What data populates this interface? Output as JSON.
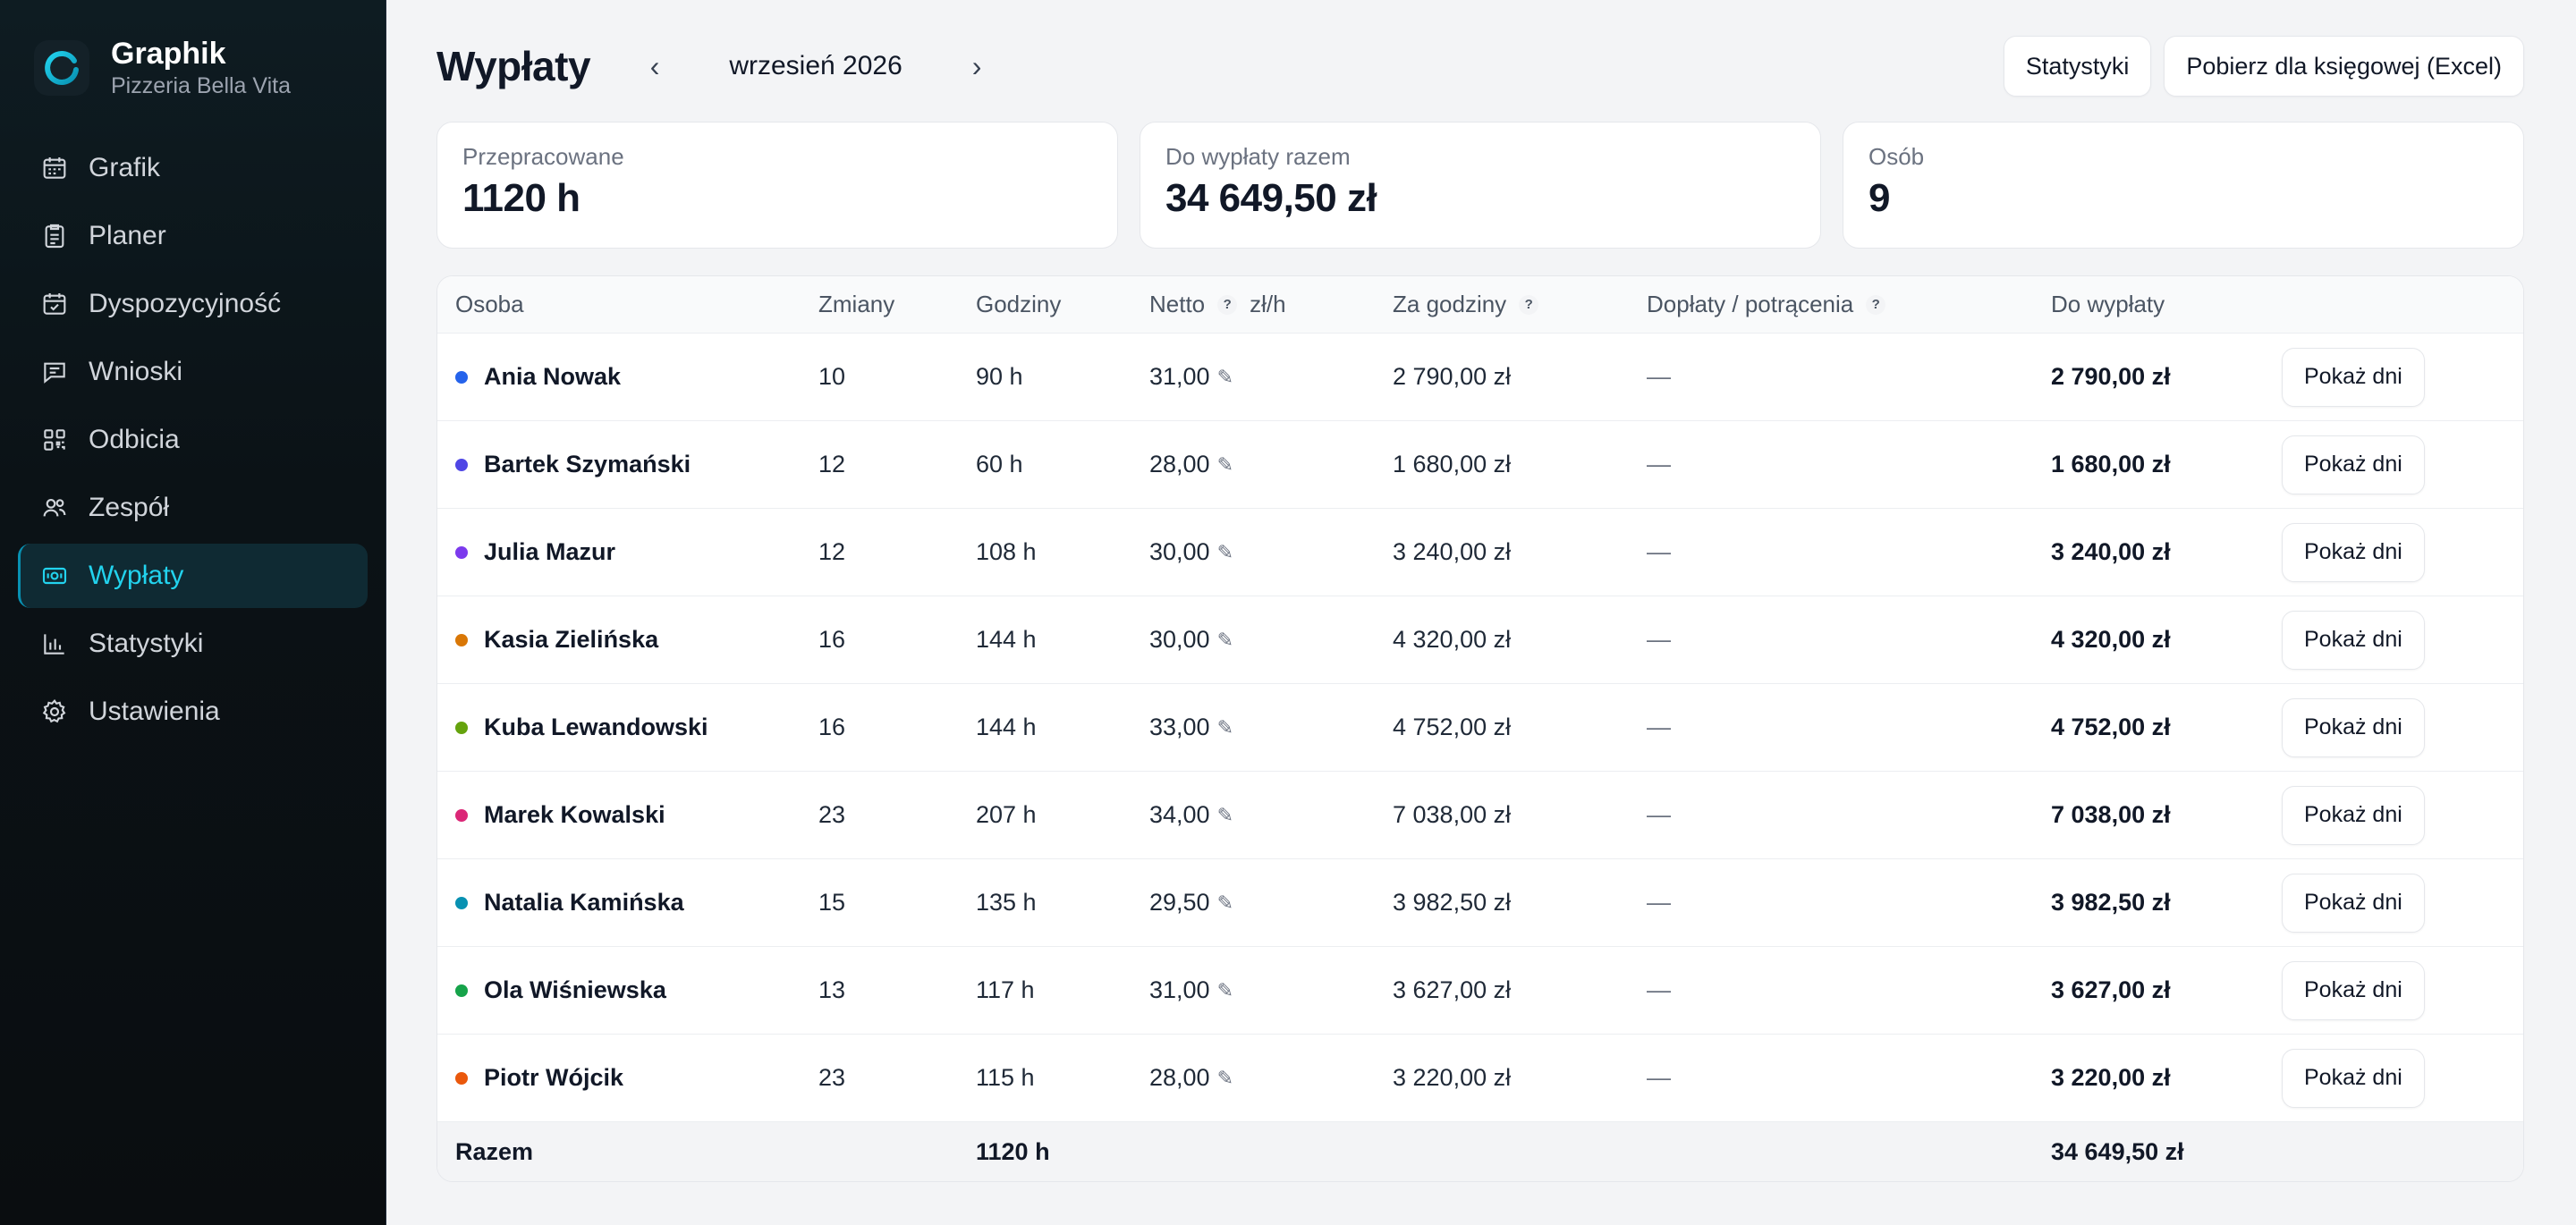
{
  "brand": {
    "name": "Graphik",
    "subtitle": "Pizzeria Bella Vita",
    "accent": "#22d3ee"
  },
  "nav": [
    {
      "label": "Grafik",
      "icon": "calendar-icon",
      "active": false
    },
    {
      "label": "Planer",
      "icon": "clipboard-icon",
      "active": false
    },
    {
      "label": "Dyspozycyjność",
      "icon": "calendar-check-icon",
      "active": false
    },
    {
      "label": "Wnioski",
      "icon": "message-icon",
      "active": false
    },
    {
      "label": "Odbicia",
      "icon": "qr-icon",
      "active": false
    },
    {
      "label": "Zespół",
      "icon": "users-icon",
      "active": false
    },
    {
      "label": "Wypłaty",
      "icon": "banknote-icon",
      "active": true
    },
    {
      "label": "Statystyki",
      "icon": "bar-chart-icon",
      "active": false
    },
    {
      "label": "Ustawienia",
      "icon": "gear-icon",
      "active": false
    }
  ],
  "header": {
    "title": "Wypłaty",
    "month": "wrzesień 2026",
    "prev": "‹",
    "next": "›",
    "stats_button": "Statystyki",
    "export_button": "Pobierz dla księgowej (Excel)"
  },
  "stats": [
    {
      "label": "Przepracowane",
      "value": "1120 h"
    },
    {
      "label": "Do wypłaty razem",
      "value": "34 649,50 zł"
    },
    {
      "label": "Osób",
      "value": "9"
    }
  ],
  "table": {
    "columns": {
      "person": "Osoba",
      "shifts": "Zmiany",
      "hours": "Godziny",
      "net": "Netto",
      "net_unit": "zł/h",
      "for_hours": "Za godziny",
      "adjustments": "Dopłaty / potrącenia",
      "payout": "Do wypłaty"
    },
    "help_mark": "?",
    "edit_mark": "✎",
    "rows": [
      {
        "name": "Ania Nowak",
        "color": "#2563eb",
        "shifts": "10",
        "hours": "90 h",
        "rate": "31,00",
        "for_hours": "2 790,00 zł",
        "adjust": "—",
        "payout": "2 790,00 zł",
        "action": "Pokaż dni"
      },
      {
        "name": "Bartek Szymański",
        "color": "#4f46e5",
        "shifts": "12",
        "hours": "60 h",
        "rate": "28,00",
        "for_hours": "1 680,00 zł",
        "adjust": "—",
        "payout": "1 680,00 zł",
        "action": "Pokaż dni"
      },
      {
        "name": "Julia Mazur",
        "color": "#7c3aed",
        "shifts": "12",
        "hours": "108 h",
        "rate": "30,00",
        "for_hours": "3 240,00 zł",
        "adjust": "—",
        "payout": "3 240,00 zł",
        "action": "Pokaż dni"
      },
      {
        "name": "Kasia Zielińska",
        "color": "#d97706",
        "shifts": "16",
        "hours": "144 h",
        "rate": "30,00",
        "for_hours": "4 320,00 zł",
        "adjust": "—",
        "payout": "4 320,00 zł",
        "action": "Pokaż dni"
      },
      {
        "name": "Kuba Lewandowski",
        "color": "#65a30d",
        "shifts": "16",
        "hours": "144 h",
        "rate": "33,00",
        "for_hours": "4 752,00 zł",
        "adjust": "—",
        "payout": "4 752,00 zł",
        "action": "Pokaż dni"
      },
      {
        "name": "Marek Kowalski",
        "color": "#db2777",
        "shifts": "23",
        "hours": "207 h",
        "rate": "34,00",
        "for_hours": "7 038,00 zł",
        "adjust": "—",
        "payout": "7 038,00 zł",
        "action": "Pokaż dni"
      },
      {
        "name": "Natalia Kamińska",
        "color": "#0891b2",
        "shifts": "15",
        "hours": "135 h",
        "rate": "29,50",
        "for_hours": "3 982,50 zł",
        "adjust": "—",
        "payout": "3 982,50 zł",
        "action": "Pokaż dni"
      },
      {
        "name": "Ola Wiśniewska",
        "color": "#16a34a",
        "shifts": "13",
        "hours": "117 h",
        "rate": "31,00",
        "for_hours": "3 627,00 zł",
        "adjust": "—",
        "payout": "3 627,00 zł",
        "action": "Pokaż dni"
      },
      {
        "name": "Piotr Wójcik",
        "color": "#ea580c",
        "shifts": "23",
        "hours": "115 h",
        "rate": "28,00",
        "for_hours": "3 220,00 zł",
        "adjust": "—",
        "payout": "3 220,00 zł",
        "action": "Pokaż dni"
      }
    ],
    "footer": {
      "label": "Razem",
      "hours": "1120 h",
      "payout": "34 649,50 zł"
    }
  }
}
